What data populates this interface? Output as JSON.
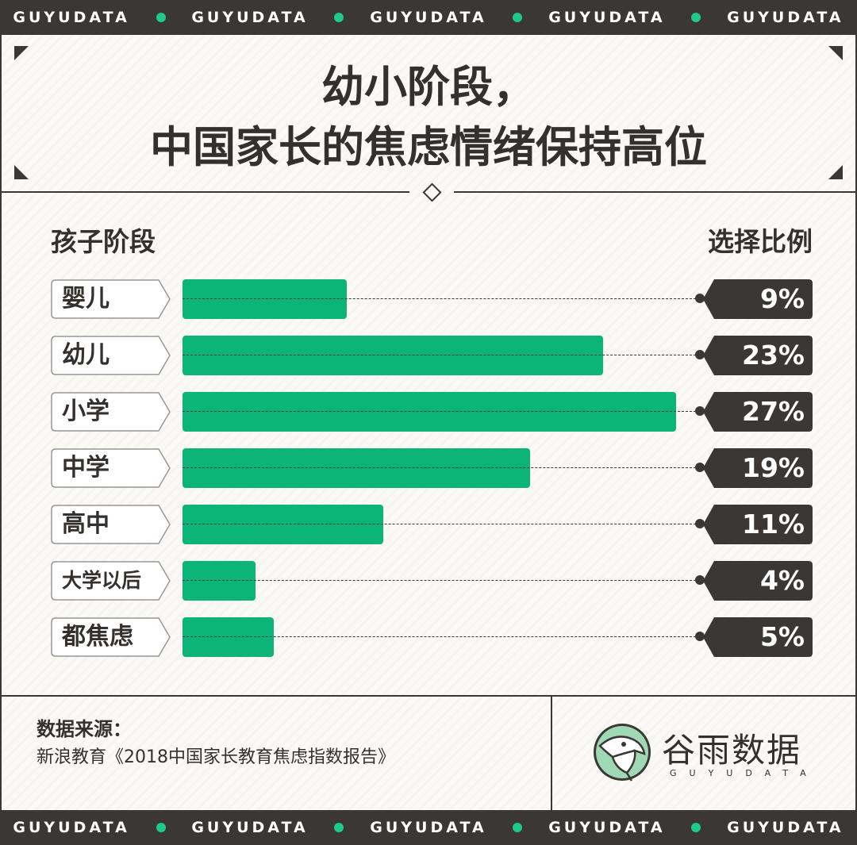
{
  "banner": {
    "text": "GUYUDATA",
    "accent_color": "#1fc98a",
    "repeat_count": 5
  },
  "title": {
    "line1": "幼小阶段，",
    "line2": "中国家长的焦虑情绪保持高位"
  },
  "chart_data": {
    "type": "bar",
    "orientation": "horizontal",
    "category_header": "孩子阶段",
    "value_header": "选择比例",
    "categories": [
      "婴儿",
      "幼儿",
      "小学",
      "中学",
      "高中",
      "大学以后",
      "都焦虑"
    ],
    "values": [
      9,
      23,
      27,
      19,
      11,
      4,
      5
    ],
    "value_labels": [
      "9%",
      "23%",
      "27%",
      "19%",
      "11%",
      "4%",
      "5%"
    ],
    "unit": "%",
    "xlim": [
      0,
      27
    ],
    "bar_color": "#0db47a",
    "tag_color": "#3a3734",
    "grid": false,
    "legend": "none"
  },
  "footer": {
    "source_label": "数据来源：",
    "source_text": "新浪教育《2018中国家长教育焦虑指数报告》"
  },
  "logo": {
    "name": "谷雨数据",
    "subtitle": "GUYUDATA",
    "icon": "bird-logo-icon"
  }
}
